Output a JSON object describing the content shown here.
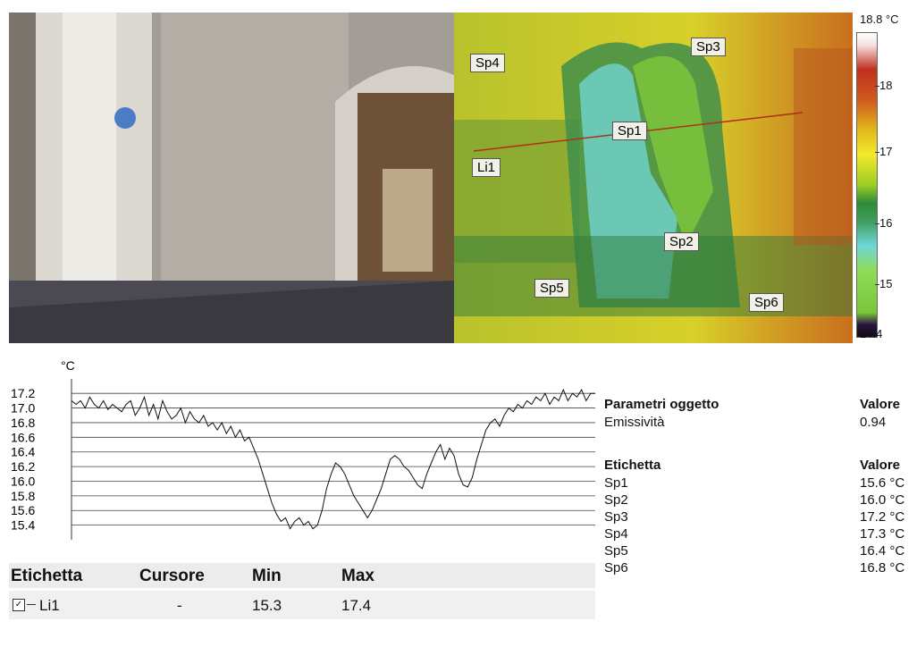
{
  "thermal": {
    "scale_max": "18.8 °C",
    "scale_min": "14.4",
    "ticks": [
      "18",
      "17",
      "16",
      "15"
    ],
    "markers": [
      "Sp1",
      "Sp2",
      "Sp3",
      "Sp4",
      "Sp5",
      "Sp6",
      "Li1"
    ]
  },
  "chart_data": {
    "type": "line",
    "ylabel": "°C",
    "ylim": [
      15.2,
      17.3
    ],
    "y_ticks": [
      "17.2",
      "17.0",
      "16.8",
      "16.6",
      "16.4",
      "16.2",
      "16.0",
      "15.8",
      "15.6",
      "15.4"
    ],
    "series": [
      {
        "name": "Li1",
        "values": [
          17.1,
          17.05,
          17.1,
          17.0,
          17.15,
          17.05,
          17.0,
          17.1,
          16.98,
          17.05,
          17.0,
          16.95,
          17.05,
          17.1,
          16.9,
          17.0,
          17.15,
          16.9,
          17.05,
          16.85,
          17.1,
          16.95,
          16.85,
          16.9,
          17.0,
          16.8,
          16.95,
          16.85,
          16.8,
          16.9,
          16.75,
          16.8,
          16.7,
          16.8,
          16.65,
          16.75,
          16.6,
          16.7,
          16.55,
          16.6,
          16.45,
          16.3,
          16.1,
          15.9,
          15.7,
          15.55,
          15.45,
          15.5,
          15.35,
          15.45,
          15.5,
          15.4,
          15.45,
          15.35,
          15.4,
          15.6,
          15.9,
          16.1,
          16.25,
          16.2,
          16.1,
          15.95,
          15.8,
          15.7,
          15.6,
          15.5,
          15.6,
          15.75,
          15.9,
          16.1,
          16.3,
          16.35,
          16.3,
          16.2,
          16.15,
          16.05,
          15.95,
          15.9,
          16.1,
          16.25,
          16.4,
          16.5,
          16.3,
          16.45,
          16.35,
          16.1,
          15.95,
          15.92,
          16.05,
          16.3,
          16.5,
          16.7,
          16.8,
          16.85,
          16.75,
          16.9,
          17.0,
          16.95,
          17.05,
          17.0,
          17.1,
          17.05,
          17.15,
          17.1,
          17.2,
          17.05,
          17.15,
          17.1,
          17.25,
          17.1,
          17.2,
          17.15,
          17.25,
          17.1,
          17.2,
          17.2
        ]
      }
    ]
  },
  "table": {
    "headers": [
      "Etichetta",
      "Cursore",
      "Min",
      "Max"
    ],
    "row": {
      "label": "Li1",
      "cursor": "-",
      "min": "15.3",
      "max": "17.4"
    }
  },
  "params": {
    "title": "Parametri oggetto",
    "value_header": "Valore",
    "emissivity_label": "Emissività",
    "emissivity_value": "0.94"
  },
  "labels": {
    "title": "Etichetta",
    "value_header": "Valore",
    "rows": [
      {
        "name": "Sp1",
        "value": "15.6 °C"
      },
      {
        "name": "Sp2",
        "value": "16.0 °C"
      },
      {
        "name": "Sp3",
        "value": "17.2 °C"
      },
      {
        "name": "Sp4",
        "value": "17.3 °C"
      },
      {
        "name": "Sp5",
        "value": "16.4 °C"
      },
      {
        "name": "Sp6",
        "value": "16.8 °C"
      }
    ]
  }
}
